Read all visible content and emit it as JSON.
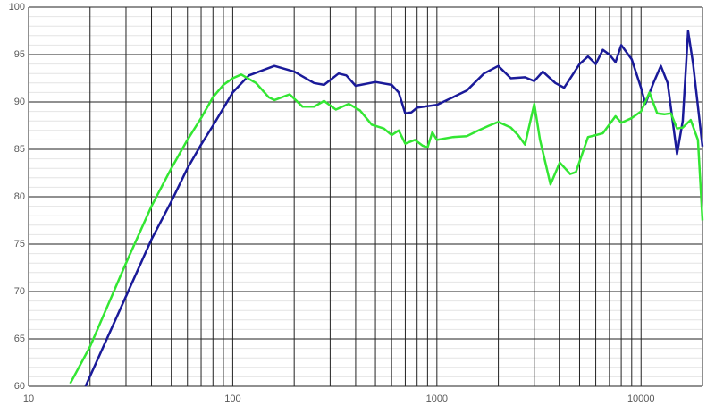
{
  "chart_data": {
    "type": "line",
    "log_x": true,
    "grid": true,
    "xlim": [
      10,
      20000
    ],
    "xticks": [
      10,
      100,
      1000,
      10000
    ],
    "xminorticks": [
      20,
      30,
      40,
      50,
      60,
      70,
      80,
      90,
      200,
      300,
      400,
      500,
      600,
      700,
      800,
      900,
      2000,
      3000,
      4000,
      5000,
      6000,
      7000,
      8000,
      9000,
      20000
    ],
    "ylim": [
      60,
      100
    ],
    "yticks": [
      60,
      65,
      70,
      75,
      80,
      85,
      90,
      95,
      100
    ],
    "yminorticks": [
      61,
      62,
      63,
      64,
      66,
      67,
      68,
      69,
      71,
      72,
      73,
      74,
      76,
      77,
      78,
      79,
      81,
      82,
      83,
      84,
      86,
      87,
      88,
      89,
      91,
      92,
      93,
      94,
      96,
      97,
      98,
      99
    ],
    "series": [
      {
        "color": "#1a1a99",
        "x": [
          19,
          30,
          40,
          50,
          60,
          70,
          80,
          100,
          120,
          160,
          200,
          250,
          280,
          330,
          360,
          400,
          500,
          600,
          650,
          700,
          750,
          800,
          1000,
          1200,
          1400,
          1700,
          2000,
          2300,
          2700,
          3000,
          3300,
          3800,
          4200,
          5000,
          5500,
          6000,
          6500,
          7000,
          7500,
          8000,
          9000,
          10000,
          10500,
          11500,
          12500,
          13500,
          15000,
          16000,
          17000,
          18000,
          20000
        ],
        "values": [
          60,
          69.5,
          75.5,
          79.5,
          83,
          85.5,
          87.5,
          91,
          92.8,
          93.8,
          93.2,
          92,
          91.8,
          93,
          92.8,
          91.7,
          92.1,
          91.8,
          91,
          88.8,
          88.9,
          89.4,
          89.7,
          90.5,
          91.2,
          93,
          93.8,
          92.5,
          92.6,
          92.2,
          93.2,
          92,
          91.5,
          94,
          94.8,
          94,
          95.5,
          95,
          94.2,
          96,
          94.5,
          91.5,
          89.8,
          92,
          93.8,
          92,
          84.5,
          88,
          97.5,
          94,
          85.3
        ]
      },
      {
        "color": "#33e633",
        "x": [
          16,
          20,
          30,
          40,
          50,
          60,
          70,
          80,
          90,
          100,
          110,
          130,
          150,
          160,
          190,
          220,
          250,
          280,
          320,
          370,
          420,
          480,
          550,
          600,
          650,
          700,
          780,
          850,
          900,
          950,
          1000,
          1200,
          1400,
          1600,
          1800,
          2000,
          2300,
          2500,
          2700,
          3000,
          3200,
          3600,
          4000,
          4500,
          4800,
          5500,
          6000,
          6500,
          7500,
          8000,
          9000,
          10000,
          11000,
          12000,
          13000,
          14000,
          15000,
          16000,
          17500,
          19000,
          20000
        ],
        "values": [
          60.3,
          64.2,
          73,
          79,
          83,
          86,
          88.3,
          90.5,
          91.8,
          92.5,
          92.9,
          92,
          90.5,
          90.2,
          90.8,
          89.5,
          89.5,
          90.1,
          89.2,
          89.8,
          89.1,
          87.6,
          87.2,
          86.5,
          87,
          85.6,
          86,
          85.4,
          85.2,
          86.8,
          86,
          86.3,
          86.4,
          87,
          87.5,
          87.9,
          87.3,
          86.5,
          85.5,
          89.8,
          86,
          81.3,
          83.6,
          82.4,
          82.6,
          86.3,
          86.5,
          86.7,
          88.5,
          87.8,
          88.3,
          89,
          91,
          88.8,
          88.7,
          88.8,
          87.2,
          87.3,
          88.1,
          86,
          77.5
        ]
      }
    ]
  }
}
